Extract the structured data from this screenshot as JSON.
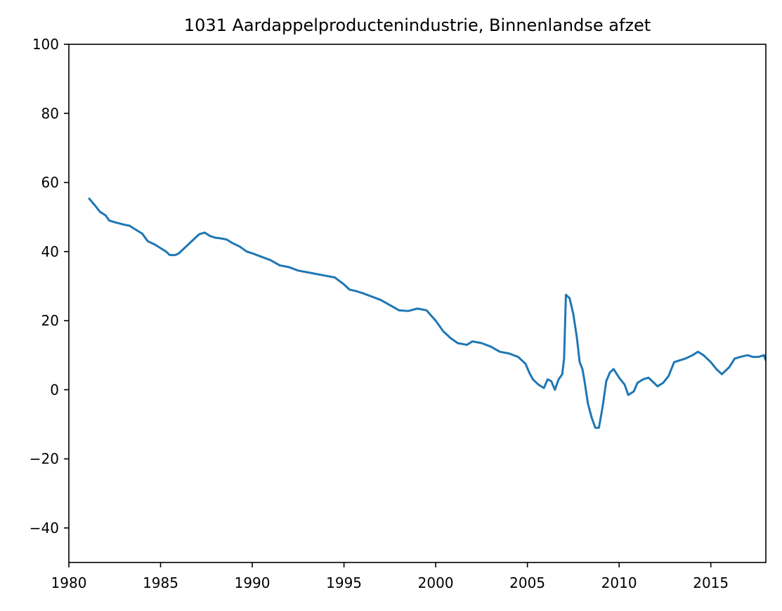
{
  "chart_data": {
    "type": "line",
    "title": "1031 Aardappelproductenindustrie, Binnenlandse afzet",
    "xlabel": "",
    "ylabel": "",
    "xlim": [
      1980,
      2018
    ],
    "ylim": [
      -50,
      100
    ],
    "xticks": [
      1980,
      1985,
      1990,
      1995,
      2000,
      2005,
      2010,
      2015
    ],
    "xtick_labels": [
      "1980",
      "1985",
      "1990",
      "1995",
      "2000",
      "2005",
      "2010",
      "2015"
    ],
    "yticks": [
      -40,
      -20,
      0,
      20,
      40,
      60,
      80,
      100
    ],
    "ytick_labels": [
      "−40",
      "−20",
      "0",
      "20",
      "40",
      "60",
      "80",
      "100"
    ],
    "grid": false,
    "legend": "none",
    "series": [
      {
        "color": "#1f77b4",
        "x": [
          1981.08,
          1981.4,
          1981.7,
          1982.0,
          1982.2,
          1982.5,
          1983.0,
          1983.3,
          1983.6,
          1984.0,
          1984.3,
          1984.7,
          1985.0,
          1985.3,
          1985.5,
          1985.8,
          1986.0,
          1986.3,
          1986.6,
          1986.9,
          1987.1,
          1987.4,
          1987.7,
          1988.0,
          1988.3,
          1988.6,
          1988.9,
          1989.3,
          1989.7,
          1990.0,
          1990.5,
          1991.0,
          1991.5,
          1992.0,
          1992.5,
          1993.0,
          1993.5,
          1994.0,
          1994.5,
          1995.0,
          1995.3,
          1995.7,
          1996.0,
          1996.5,
          1997.0,
          1997.5,
          1998.0,
          1998.5,
          1999.0,
          1999.5,
          2000.0,
          2000.4,
          2000.8,
          2001.2,
          2001.7,
          2002.0,
          2002.5,
          2003.0,
          2003.5,
          2004.0,
          2004.5,
          2004.9,
          2005.1,
          2005.3,
          2005.6,
          2005.9,
          2006.1,
          2006.3,
          2006.5,
          2006.7,
          2006.9,
          2007.0,
          2007.1,
          2007.3,
          2007.5,
          2007.7,
          2007.85,
          2008.0,
          2008.1,
          2008.3,
          2008.5,
          2008.7,
          2008.9,
          2009.1,
          2009.3,
          2009.5,
          2009.7,
          2010.0,
          2010.3,
          2010.5,
          2010.8,
          2011.0,
          2011.3,
          2011.6,
          2011.9,
          2012.1,
          2012.4,
          2012.7,
          2013.0,
          2013.3,
          2013.6,
          2014.0,
          2014.3,
          2014.6,
          2015.0,
          2015.3,
          2015.6,
          2016.0,
          2016.3,
          2016.6,
          2017.0,
          2017.3,
          2017.6,
          2017.9,
          2018.0
        ],
        "y": [
          55.5,
          53.5,
          51.5,
          50.5,
          49,
          48.5,
          47.8,
          47.5,
          46.5,
          45.2,
          43,
          42,
          41,
          40,
          39,
          39,
          39.5,
          41,
          42.5,
          44,
          45,
          45.5,
          44.5,
          44,
          43.8,
          43.5,
          42.5,
          41.5,
          40,
          39.5,
          38.5,
          37.5,
          36,
          35.5,
          34.5,
          34,
          33.5,
          33,
          32.5,
          30.5,
          29,
          28.5,
          28,
          27,
          26,
          24.5,
          23,
          22.8,
          23.5,
          23,
          20,
          17,
          15,
          13.5,
          13,
          14,
          13.5,
          12.5,
          11,
          10.5,
          9.5,
          7.5,
          5,
          3,
          1.5,
          0.5,
          3,
          2.5,
          0,
          3,
          4.5,
          9,
          27.5,
          26.5,
          22,
          15,
          8,
          6,
          3,
          -4,
          -8,
          -11,
          -11,
          -5,
          2.5,
          5,
          6,
          3.5,
          1.5,
          -1.5,
          -0.5,
          2,
          3,
          3.5,
          2,
          1,
          2,
          4,
          8,
          8.5,
          9,
          10,
          11,
          10,
          8,
          6,
          4.5,
          6.5,
          9,
          9.5,
          10,
          9.5,
          9.5,
          10,
          8.5
        ]
      }
    ]
  }
}
